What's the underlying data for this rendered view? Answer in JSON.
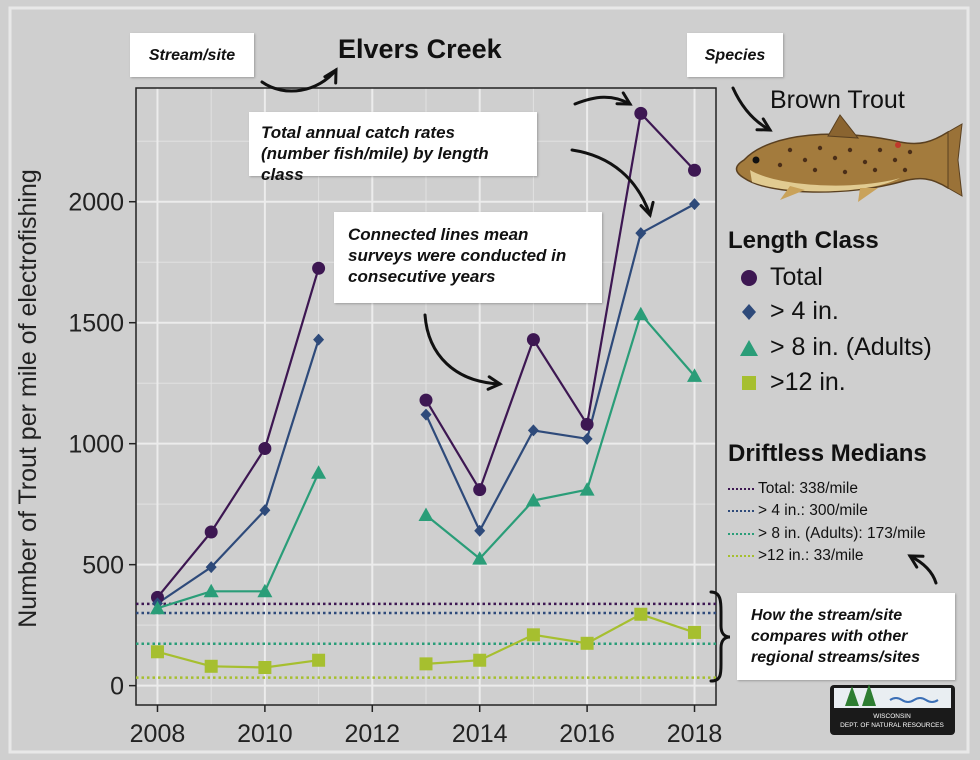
{
  "header": {
    "stream_label": "Stream/site",
    "stream_name": "Elvers Creek",
    "species_label": "Species",
    "species_name": "Brown Trout"
  },
  "callouts": {
    "catch_rates": "Total annual catch rates (number fish/mile) by length class",
    "connected_lines": "Connected lines mean surveys were conducted in consecutive years",
    "comparison": "How the stream/site compares with other regional streams/sites"
  },
  "legend": {
    "title": "Length Class",
    "items": [
      "Total",
      "> 4 in.",
      "> 8 in. (Adults)",
      ">12 in."
    ]
  },
  "medians": {
    "title": "Driftless Medians",
    "items": [
      {
        "label": "Total: 338/mile",
        "value": 338,
        "color": "#3d1752"
      },
      {
        "label": "> 4 in.: 300/mile",
        "value": 300,
        "color": "#2e4a7a"
      },
      {
        "label": "> 8 in. (Adults): 173/mile",
        "value": 173,
        "color": "#2a9d78"
      },
      {
        "label": ">12 in.: 33/mile",
        "value": 33,
        "color": "#a6bf2f"
      }
    ]
  },
  "logo": {
    "line1": "WISCONSIN",
    "line2": "DEPT. OF NATURAL RESOURCES"
  },
  "chart_data": {
    "type": "line",
    "ylabel": "Number of Trout per mile of electrofishing",
    "xlabel": "",
    "xlim": [
      2007.6,
      2018.4
    ],
    "ylim": [
      -80,
      2470
    ],
    "x_ticks": [
      2008,
      2010,
      2012,
      2014,
      2016,
      2018
    ],
    "y_ticks": [
      0,
      500,
      1000,
      1500,
      2000
    ],
    "x_ticks_minor": [
      2009,
      2011,
      2013,
      2015,
      2017
    ],
    "y_ticks_minor": [
      250,
      750,
      1250,
      1750,
      2250
    ],
    "grid": true,
    "legend_position": "right",
    "series": [
      {
        "name": "Total",
        "color": "#3d1752",
        "marker": "circle",
        "segments": [
          [
            [
              2008,
              365
            ],
            [
              2009,
              635
            ],
            [
              2010,
              980
            ],
            [
              2011,
              1725
            ]
          ],
          [
            [
              2013,
              1180
            ],
            [
              2014,
              810
            ],
            [
              2015,
              1430
            ],
            [
              2016,
              1080
            ],
            [
              2017,
              2365
            ],
            [
              2018,
              2130
            ]
          ]
        ]
      },
      {
        "name": "> 4 in.",
        "color": "#2e4a7a",
        "marker": "diamond",
        "segments": [
          [
            [
              2008,
              340
            ],
            [
              2009,
              490
            ],
            [
              2010,
              725
            ],
            [
              2011,
              1430
            ]
          ],
          [
            [
              2013,
              1120
            ],
            [
              2014,
              640
            ],
            [
              2015,
              1055
            ],
            [
              2016,
              1020
            ],
            [
              2017,
              1870
            ],
            [
              2018,
              1990
            ]
          ]
        ]
      },
      {
        "name": "> 8 in. (Adults)",
        "color": "#2a9d78",
        "marker": "triangle",
        "segments": [
          [
            [
              2008,
              320
            ],
            [
              2009,
              390
            ],
            [
              2010,
              390
            ],
            [
              2011,
              880
            ]
          ],
          [
            [
              2013,
              705
            ],
            [
              2014,
              525
            ],
            [
              2015,
              765
            ],
            [
              2016,
              810
            ],
            [
              2017,
              1535
            ],
            [
              2018,
              1280
            ]
          ]
        ]
      },
      {
        "name": ">12 in.",
        "color": "#a6bf2f",
        "marker": "square",
        "segments": [
          [
            [
              2008,
              140
            ],
            [
              2009,
              80
            ],
            [
              2010,
              75
            ],
            [
              2011,
              105
            ]
          ],
          [
            [
              2013,
              90
            ],
            [
              2014,
              105
            ],
            [
              2015,
              210
            ],
            [
              2016,
              175
            ],
            [
              2017,
              295
            ],
            [
              2018,
              220
            ]
          ]
        ]
      }
    ]
  }
}
